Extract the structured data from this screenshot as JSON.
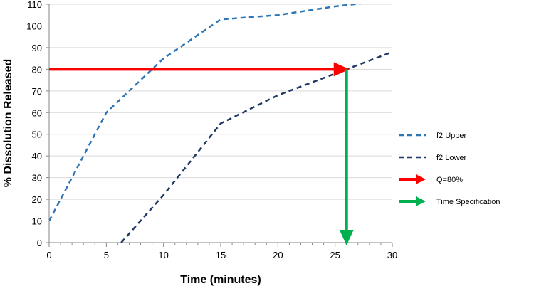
{
  "chart_data": {
    "type": "line",
    "xlabel": "Time (minutes)",
    "ylabel": "% Dissolution Released",
    "xlim": [
      0,
      30
    ],
    "ylim": [
      0,
      110
    ],
    "x_ticks": [
      0,
      5,
      10,
      15,
      20,
      25,
      30
    ],
    "y_ticks": [
      0,
      10,
      20,
      30,
      40,
      50,
      60,
      70,
      80,
      90,
      100,
      110
    ],
    "x_minor_step": 1,
    "grid": "horizontal",
    "legend_position": "right",
    "series": [
      {
        "name": "f2 Upper",
        "style": "dashed",
        "color": "#2E75B6",
        "points": [
          [
            0,
            10
          ],
          [
            5,
            60
          ],
          [
            10,
            85
          ],
          [
            15,
            103
          ],
          [
            20,
            105
          ],
          [
            25,
            109
          ],
          [
            30,
            112
          ]
        ]
      },
      {
        "name": "f2 Lower",
        "style": "dashed",
        "color": "#1F3864",
        "points": [
          [
            6.3,
            0
          ],
          [
            10,
            22
          ],
          [
            15,
            55
          ],
          [
            20,
            68
          ],
          [
            25,
            78
          ],
          [
            30,
            88
          ]
        ]
      }
    ],
    "arrows": [
      {
        "name": "Q=80%",
        "color": "#FF0000",
        "from": [
          0,
          80
        ],
        "to": [
          26,
          80
        ]
      },
      {
        "name": "Time Specification",
        "color": "#00B050",
        "from": [
          26,
          80
        ],
        "to": [
          26,
          0
        ]
      }
    ]
  }
}
